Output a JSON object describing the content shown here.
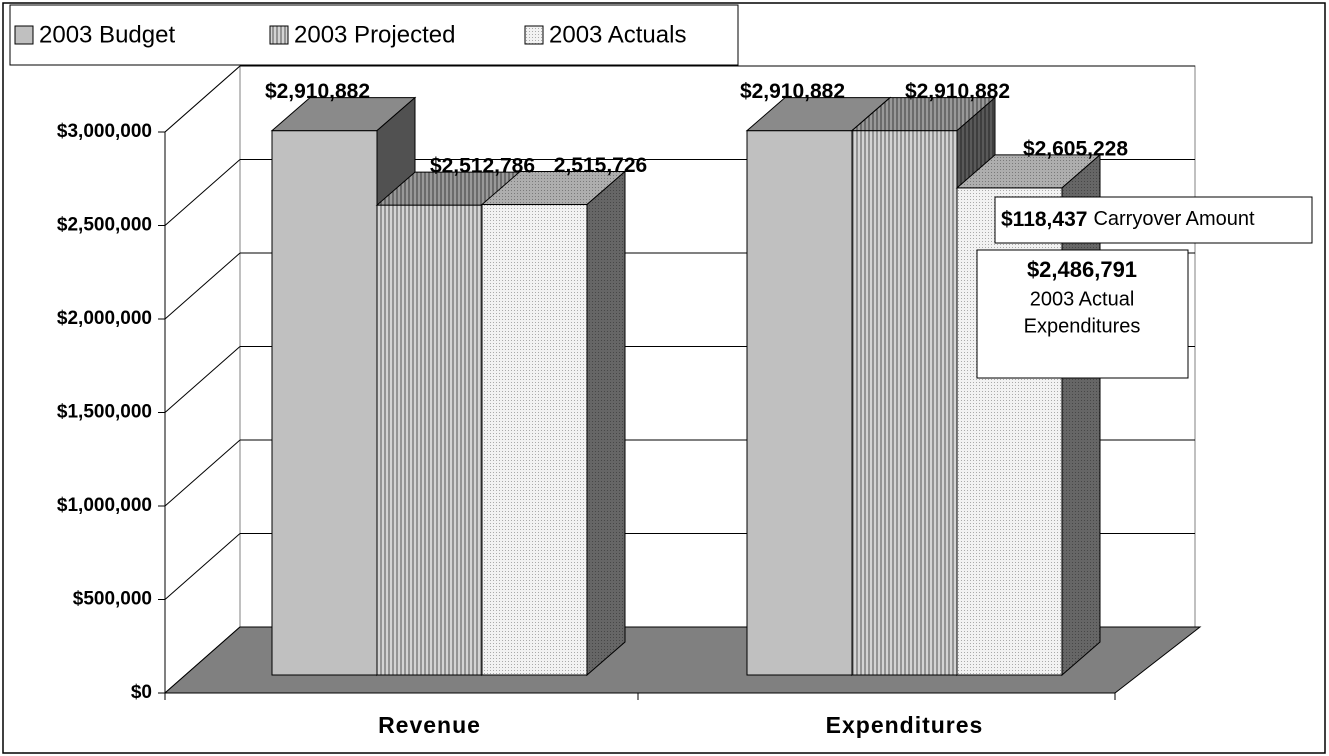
{
  "chart_data": {
    "type": "bar3d",
    "categories": [
      "Revenue",
      "Expenditures"
    ],
    "series": [
      {
        "name": "2003 Budget",
        "color": "#c0c0c0",
        "values": [
          2910882,
          2910882
        ],
        "value_labels": [
          "$2,910,882",
          "$2,910,882"
        ]
      },
      {
        "name": "2003 Projected",
        "color": "#d4d4d4",
        "values": [
          2512786,
          2910882
        ],
        "value_labels": [
          "$2,512,786",
          "$2,910,882"
        ]
      },
      {
        "name": "2003 Actuals",
        "color": "#f2f2f2",
        "values": [
          2515726,
          2605228
        ],
        "value_labels": [
          "2,515,726",
          "$2,605,228"
        ]
      }
    ],
    "ylim": [
      0,
      3000000
    ],
    "yticks": [
      {
        "value": 0,
        "label": "$0"
      },
      {
        "value": 500000,
        "label": "$500,000"
      },
      {
        "value": 1000000,
        "label": "$1,000,000"
      },
      {
        "value": 1500000,
        "label": "$1,500,000"
      },
      {
        "value": 2000000,
        "label": "$2,000,000"
      },
      {
        "value": 2500000,
        "label": "$2,500,000"
      },
      {
        "value": 3000000,
        "label": "$3,000,000"
      }
    ],
    "grid": true,
    "legend": "top-left",
    "annotations": [
      {
        "amount": "$118,437",
        "text": "Carryover Amount"
      },
      {
        "amount": "$2,486,791",
        "lines": [
          "2003 Actual",
          "Expenditures"
        ]
      }
    ]
  }
}
